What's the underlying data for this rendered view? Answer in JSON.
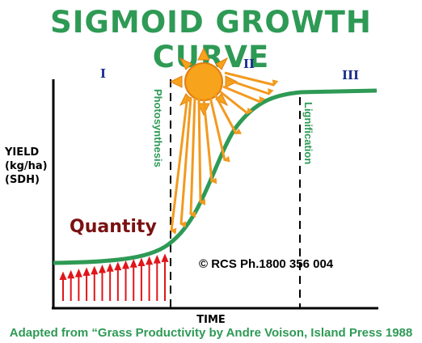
{
  "title": "SIGMOID GROWTH CURVE",
  "phases": [
    "I",
    "II",
    "III"
  ],
  "y_axis_label": [
    "YIELD",
    "(kg/ha)",
    "(SDH)"
  ],
  "x_axis_label": "TIME",
  "annotations": {
    "photosynthesis": "Photosynthesis",
    "lignification": "Lignification",
    "quantity": "Quantity",
    "copyright": "© RCS Ph.1800 356 004"
  },
  "source": "Adapted from “Grass Productivity by Andre Voison, Island Press 1988",
  "colors": {
    "curve": "#2e9a55",
    "sun": "#f7a31b",
    "sun_rays": "#f29a1f",
    "growth_arrows": "#e0161b",
    "quantity": "#7a1212",
    "phase_labels": "#1a2d8c"
  }
}
